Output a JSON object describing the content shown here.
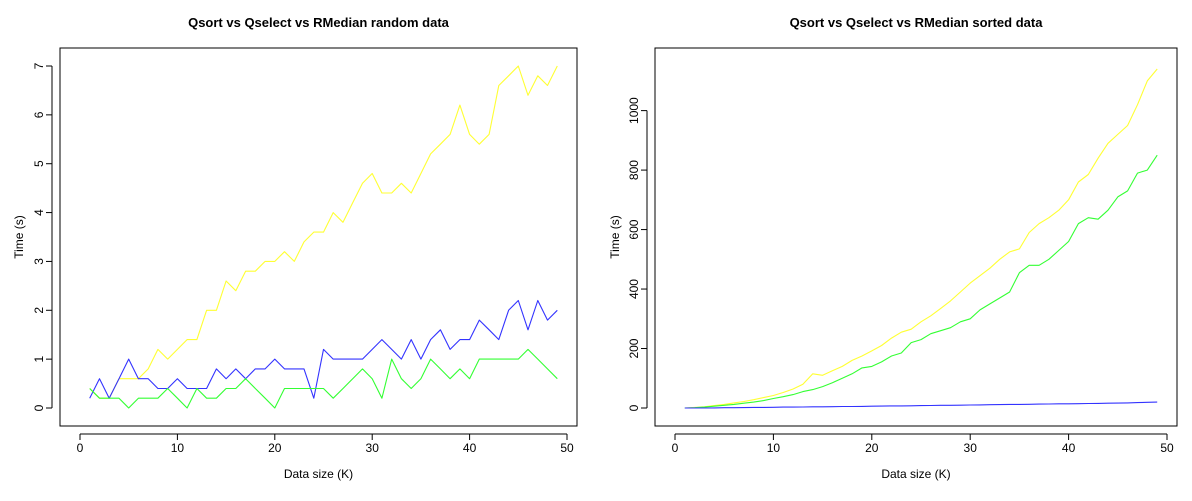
{
  "chart_data": [
    {
      "type": "line",
      "title": "Qsort vs Qselect vs RMedian random data",
      "xlabel": "Data size (K)",
      "ylabel": "Time (s)",
      "xlim": [
        0,
        50
      ],
      "ylim": [
        0,
        7
      ],
      "xticks": [
        0,
        10,
        20,
        30,
        40,
        50
      ],
      "yticks": [
        0,
        1,
        2,
        3,
        4,
        5,
        6,
        7
      ],
      "x": [
        1,
        2,
        3,
        4,
        5,
        6,
        7,
        8,
        9,
        10,
        11,
        12,
        13,
        14,
        15,
        16,
        17,
        18,
        19,
        20,
        21,
        22,
        23,
        24,
        25,
        26,
        27,
        28,
        29,
        30,
        31,
        32,
        33,
        34,
        35,
        36,
        37,
        38,
        39,
        40,
        41,
        42,
        43,
        44,
        45,
        46,
        47,
        48,
        49
      ],
      "series": [
        {
          "color": "#ffff33",
          "values": [
            0.4,
            0.2,
            0.2,
            0.6,
            0.6,
            0.6,
            0.8,
            1.2,
            1.0,
            1.2,
            1.4,
            1.4,
            2.0,
            2.0,
            2.6,
            2.4,
            2.8,
            2.8,
            3.0,
            3.0,
            3.2,
            3.0,
            3.4,
            3.6,
            3.6,
            4.0,
            3.8,
            4.2,
            4.6,
            4.8,
            4.4,
            4.4,
            4.6,
            4.4,
            4.8,
            5.2,
            5.4,
            5.6,
            6.2,
            5.6,
            5.4,
            5.6,
            6.6,
            6.8,
            7.0,
            6.4,
            6.8,
            6.6,
            7.0
          ]
        },
        {
          "color": "#3333ff",
          "values": [
            0.2,
            0.6,
            0.2,
            0.6,
            1.0,
            0.6,
            0.6,
            0.4,
            0.4,
            0.6,
            0.4,
            0.4,
            0.4,
            0.8,
            0.6,
            0.8,
            0.6,
            0.8,
            0.8,
            1.0,
            0.8,
            0.8,
            0.8,
            0.2,
            1.2,
            1.0,
            1.0,
            1.0,
            1.0,
            1.2,
            1.4,
            1.2,
            1.0,
            1.4,
            1.0,
            1.4,
            1.6,
            1.2,
            1.4,
            1.4,
            1.8,
            1.6,
            1.4,
            2.0,
            2.2,
            1.6,
            2.2,
            1.8,
            2.0
          ]
        },
        {
          "color": "#33ff33",
          "values": [
            0.4,
            0.2,
            0.2,
            0.2,
            0.0,
            0.2,
            0.2,
            0.2,
            0.4,
            0.2,
            0.0,
            0.4,
            0.2,
            0.2,
            0.4,
            0.4,
            0.6,
            0.4,
            0.2,
            0.0,
            0.4,
            0.4,
            0.4,
            0.4,
            0.4,
            0.2,
            0.4,
            0.6,
            0.8,
            0.6,
            0.2,
            1.0,
            0.6,
            0.4,
            0.6,
            1.0,
            0.8,
            0.6,
            0.8,
            0.6,
            1.0,
            1.0,
            1.0,
            1.0,
            1.0,
            1.2,
            1.0,
            0.8,
            0.6
          ]
        }
      ]
    },
    {
      "type": "line",
      "title": "Qsort vs Qselect vs RMedian sorted data",
      "xlabel": "Data size (K)",
      "ylabel": "Time (s)",
      "xlim": [
        0,
        50
      ],
      "ylim": [
        0,
        1150
      ],
      "xticks": [
        0,
        10,
        20,
        30,
        40,
        50
      ],
      "yticks": [
        0,
        200,
        400,
        600,
        800,
        1000
      ],
      "x": [
        1,
        2,
        3,
        4,
        5,
        6,
        7,
        8,
        9,
        10,
        11,
        12,
        13,
        14,
        15,
        16,
        17,
        18,
        19,
        20,
        21,
        22,
        23,
        24,
        25,
        26,
        27,
        28,
        29,
        30,
        31,
        32,
        33,
        34,
        35,
        36,
        37,
        38,
        39,
        40,
        41,
        42,
        43,
        44,
        45,
        46,
        47,
        48,
        49
      ],
      "series": [
        {
          "color": "#ffff33",
          "values": [
            0,
            2,
            4,
            8,
            12,
            17,
            22,
            28,
            35,
            42,
            52,
            64,
            80,
            115,
            110,
            125,
            140,
            160,
            175,
            192,
            210,
            235,
            255,
            265,
            290,
            310,
            335,
            360,
            390,
            420,
            445,
            470,
            500,
            525,
            535,
            590,
            620,
            640,
            665,
            700,
            760,
            785,
            840,
            890,
            920,
            950,
            1020,
            1100,
            1140
          ]
        },
        {
          "color": "#33ff33",
          "values": [
            0,
            1,
            3,
            6,
            9,
            12,
            16,
            20,
            25,
            32,
            38,
            45,
            55,
            62,
            72,
            85,
            100,
            115,
            135,
            140,
            155,
            175,
            185,
            220,
            230,
            250,
            260,
            270,
            290,
            300,
            330,
            350,
            370,
            390,
            455,
            480,
            480,
            500,
            530,
            560,
            620,
            640,
            635,
            665,
            710,
            730,
            790,
            800,
            850
          ]
        },
        {
          "color": "#3333ff",
          "values": [
            0,
            0,
            0,
            0.5,
            1,
            1,
            1.5,
            2,
            2,
            2.5,
            3,
            3,
            3.5,
            4,
            4,
            4.5,
            5,
            5,
            5.5,
            6,
            6.5,
            7,
            7,
            7.5,
            8,
            8.5,
            9,
            9,
            9.5,
            10,
            10.5,
            11,
            11.5,
            12,
            12,
            12.5,
            13,
            13.5,
            14,
            14,
            14.5,
            15,
            15.5,
            16,
            16.5,
            17,
            18,
            19,
            20
          ]
        }
      ]
    }
  ]
}
